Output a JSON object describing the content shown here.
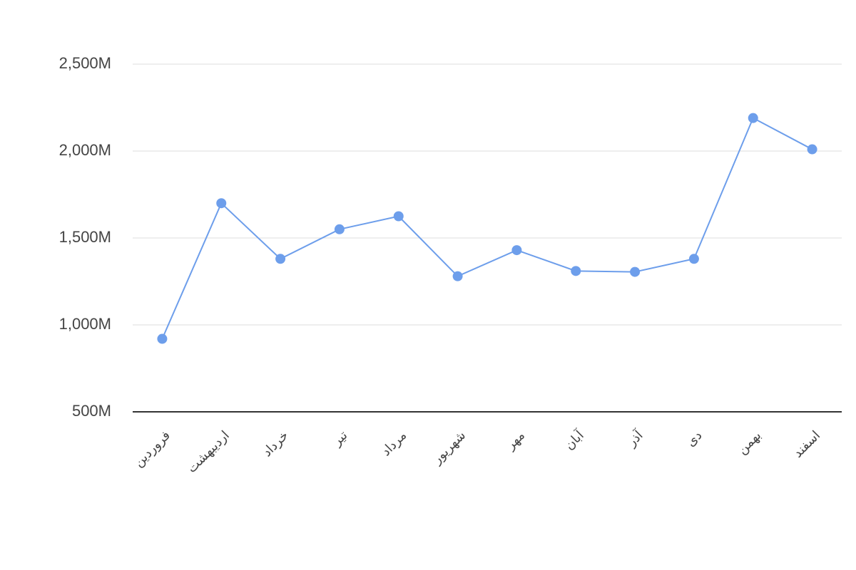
{
  "chart_data": {
    "type": "line",
    "categories": [
      "فروردین",
      "اردیبهشت",
      "خرداد",
      "تیر",
      "مرداد",
      "شهریور",
      "مهر",
      "آبان",
      "آذر",
      "دی",
      "بهمن",
      "اسفند"
    ],
    "series": [
      {
        "color": "#6d9eeb",
        "values": [
          920000000,
          1700000000,
          1380000000,
          1550000000,
          1625000000,
          1280000000,
          1430000000,
          1310000000,
          1305000000,
          1380000000,
          2190000000,
          2010000000
        ]
      }
    ],
    "ylim": [
      500000000,
      2500000000
    ],
    "yticks": [
      {
        "value": 500000000,
        "label": "500M"
      },
      {
        "value": 1000000000,
        "label": "1,000M"
      },
      {
        "value": 1500000000,
        "label": "1,500M"
      },
      {
        "value": 2000000000,
        "label": "2,000M"
      },
      {
        "value": 2500000000,
        "label": "2,500M"
      }
    ],
    "grid": true
  }
}
